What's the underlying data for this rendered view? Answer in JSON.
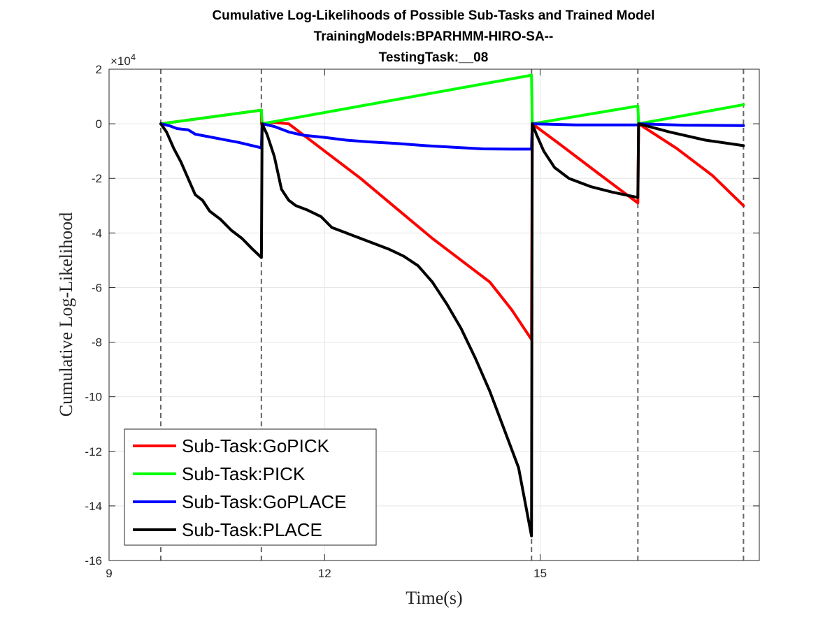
{
  "chart_data": {
    "type": "line",
    "title": [
      "Cumulative Log-Likelihoods of Possible Sub-Tasks and Trained Model",
      "TrainingModels:BPARHMM-HIRO-SA--",
      "TestingTask:__08"
    ],
    "xlabel": "Time(s)",
    "ylabel": "Cumulative Log-Likelihood",
    "y_exponent_label": "×10",
    "y_exponent_power": "4",
    "xlim": [
      9,
      18.05
    ],
    "ylim": [
      -16,
      2
    ],
    "x_ticks": [
      9,
      12,
      15
    ],
    "x_tick_labels": [
      "9",
      "12",
      "15"
    ],
    "y_ticks": [
      2,
      0,
      -2,
      -4,
      -6,
      -8,
      -10,
      -12,
      -14,
      -16
    ],
    "y_tick_labels": [
      "2",
      "0",
      "-2",
      "-4",
      "-6",
      "-8",
      "-10",
      "-12",
      "-14",
      "-16"
    ],
    "grid": true,
    "legend_position": "bottom-left",
    "vlines": [
      9.72,
      11.12,
      14.88,
      16.36,
      17.83
    ],
    "colors": {
      "GoPICK": "#ff0000",
      "PICK": "#00ff00",
      "GoPLACE": "#0000ff",
      "PLACE": "#000000"
    },
    "series": [
      {
        "name": "Sub-Task:GoPICK",
        "color": "#ff0000",
        "points": [
          [
            9.72,
            0
          ],
          [
            11.12,
            0.5
          ],
          [
            11.12,
            0
          ],
          [
            11.3,
            0.05
          ],
          [
            11.5,
            0
          ],
          [
            11.7,
            -0.4
          ],
          [
            12,
            -1.0
          ],
          [
            12.5,
            -2.0
          ],
          [
            13,
            -3.1
          ],
          [
            13.5,
            -4.2
          ],
          [
            14.0,
            -5.2
          ],
          [
            14.3,
            -5.8
          ],
          [
            14.6,
            -6.8
          ],
          [
            14.88,
            -7.9
          ],
          [
            14.89,
            0
          ],
          [
            15.3,
            -0.8
          ],
          [
            15.8,
            -1.8
          ],
          [
            16.36,
            -2.9
          ],
          [
            16.37,
            0
          ],
          [
            16.9,
            -0.9
          ],
          [
            17.4,
            -1.9
          ],
          [
            17.83,
            -3.0
          ]
        ]
      },
      {
        "name": "Sub-Task:PICK",
        "color": "#00ff00",
        "points": [
          [
            9.72,
            0
          ],
          [
            11.12,
            0.5
          ],
          [
            11.13,
            0
          ],
          [
            14.88,
            1.78
          ],
          [
            14.89,
            0
          ],
          [
            16.36,
            0.65
          ],
          [
            16.37,
            0
          ],
          [
            17.83,
            0.7
          ]
        ]
      },
      {
        "name": "Sub-Task:GoPLACE",
        "color": "#0000ff",
        "points": [
          [
            9.72,
            0
          ],
          [
            9.85,
            -0.08
          ],
          [
            9.95,
            -0.18
          ],
          [
            10.1,
            -0.22
          ],
          [
            10.2,
            -0.38
          ],
          [
            10.4,
            -0.48
          ],
          [
            10.6,
            -0.58
          ],
          [
            10.8,
            -0.68
          ],
          [
            11.12,
            -0.88
          ],
          [
            11.13,
            0
          ],
          [
            11.3,
            -0.1
          ],
          [
            11.5,
            -0.3
          ],
          [
            11.7,
            -0.42
          ],
          [
            12.0,
            -0.5
          ],
          [
            12.3,
            -0.6
          ],
          [
            12.6,
            -0.66
          ],
          [
            13.0,
            -0.72
          ],
          [
            13.4,
            -0.8
          ],
          [
            13.8,
            -0.86
          ],
          [
            14.2,
            -0.92
          ],
          [
            14.6,
            -0.93
          ],
          [
            14.88,
            -0.93
          ],
          [
            14.89,
            0
          ],
          [
            15.5,
            -0.04
          ],
          [
            16.36,
            -0.04
          ],
          [
            16.37,
            0
          ],
          [
            17.0,
            -0.05
          ],
          [
            17.83,
            -0.07
          ]
        ]
      },
      {
        "name": "Sub-Task:PLACE",
        "color": "#000000",
        "points": [
          [
            9.72,
            0
          ],
          [
            9.8,
            -0.3
          ],
          [
            9.9,
            -0.9
          ],
          [
            10.0,
            -1.4
          ],
          [
            10.1,
            -2.0
          ],
          [
            10.2,
            -2.6
          ],
          [
            10.3,
            -2.8
          ],
          [
            10.4,
            -3.2
          ],
          [
            10.55,
            -3.5
          ],
          [
            10.7,
            -3.9
          ],
          [
            10.85,
            -4.2
          ],
          [
            11.0,
            -4.6
          ],
          [
            11.12,
            -4.9
          ],
          [
            11.13,
            0
          ],
          [
            11.2,
            -0.4
          ],
          [
            11.3,
            -1.2
          ],
          [
            11.4,
            -2.4
          ],
          [
            11.5,
            -2.8
          ],
          [
            11.6,
            -3.0
          ],
          [
            11.75,
            -3.15
          ],
          [
            11.95,
            -3.4
          ],
          [
            12.1,
            -3.8
          ],
          [
            12.3,
            -4.0
          ],
          [
            12.6,
            -4.3
          ],
          [
            12.9,
            -4.6
          ],
          [
            13.1,
            -4.85
          ],
          [
            13.3,
            -5.2
          ],
          [
            13.5,
            -5.8
          ],
          [
            13.7,
            -6.6
          ],
          [
            13.9,
            -7.5
          ],
          [
            14.1,
            -8.6
          ],
          [
            14.3,
            -9.8
          ],
          [
            14.5,
            -11.2
          ],
          [
            14.7,
            -12.6
          ],
          [
            14.88,
            -15.1
          ],
          [
            14.89,
            0
          ],
          [
            14.95,
            -0.4
          ],
          [
            15.05,
            -1.0
          ],
          [
            15.2,
            -1.6
          ],
          [
            15.4,
            -2.0
          ],
          [
            15.7,
            -2.3
          ],
          [
            16.0,
            -2.5
          ],
          [
            16.36,
            -2.7
          ],
          [
            16.37,
            0
          ],
          [
            16.8,
            -0.3
          ],
          [
            17.3,
            -0.6
          ],
          [
            17.83,
            -0.8
          ]
        ]
      }
    ]
  }
}
